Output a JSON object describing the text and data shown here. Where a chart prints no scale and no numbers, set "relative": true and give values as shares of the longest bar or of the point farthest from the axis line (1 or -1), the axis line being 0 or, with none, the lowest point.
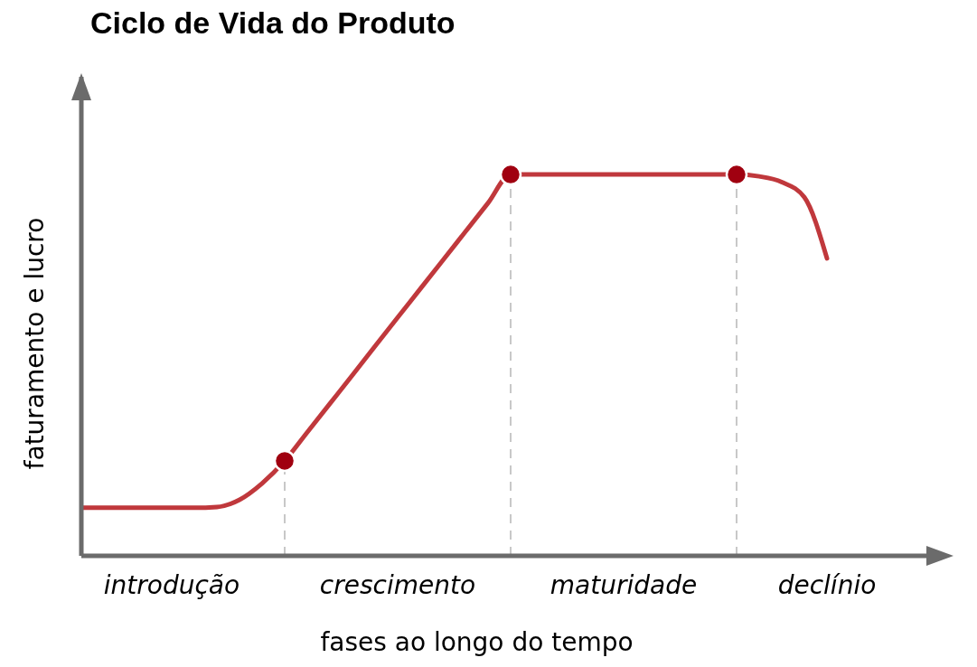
{
  "chart_data": {
    "type": "line",
    "title": "Ciclo de Vida do Produto",
    "xlabel": "fases ao longo do tempo",
    "ylabel": "faturamento e lucro",
    "relative": true,
    "categories": [
      null,
      null,
      null,
      null,
      "introdução",
      null,
      null,
      null,
      null,
      null,
      null,
      null,
      null,
      null,
      "crescimento",
      null,
      null,
      null,
      null,
      null,
      null,
      null,
      null,
      null,
      "maturidade",
      null,
      null,
      null,
      null,
      null,
      null,
      null,
      null,
      "declínio"
    ],
    "marker": "none",
    "line_style": "solid",
    "series": [
      {
        "color": "#c0383c",
        "values": [
          0.126,
          0.126,
          0.126,
          0.126,
          0.126,
          0.126,
          0.128,
          0.147,
          0.19,
          0.249,
          0.324,
          0.399,
          0.474,
          0.55,
          0.625,
          0.7,
          0.775,
          0.85,
          0.925,
          1,
          1,
          1,
          1,
          1,
          1,
          1,
          1,
          1,
          1,
          1,
          0.995,
          0.98,
          0.94,
          0.78
        ]
      },
      {
        "type": "scatter",
        "color": "#a00010",
        "marker": "circle",
        "values": [
          null,
          null,
          null,
          null,
          null,
          null,
          null,
          null,
          null,
          0.249,
          null,
          null,
          null,
          null,
          null,
          null,
          null,
          null,
          null,
          1,
          null,
          null,
          null,
          null,
          null,
          null,
          null,
          null,
          null,
          1,
          null,
          null,
          null,
          null
        ]
      }
    ]
  }
}
